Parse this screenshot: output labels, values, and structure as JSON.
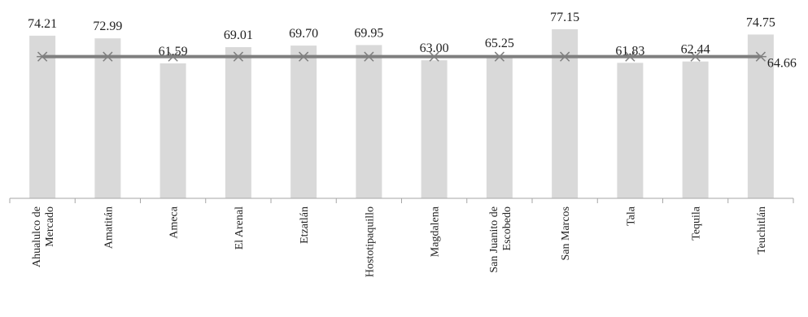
{
  "chart_data": {
    "type": "bar",
    "categories": [
      [
        "Ahualulco de",
        "Mercado"
      ],
      [
        "Amatitán"
      ],
      [
        "Ameca"
      ],
      [
        "El Arenal"
      ],
      [
        "Etzatlán"
      ],
      [
        "Hostotipaquillo"
      ],
      [
        "Magdalena"
      ],
      [
        "San Juanito de",
        "Escobedo"
      ],
      [
        "San Marcos"
      ],
      [
        "Tala"
      ],
      [
        "Tequila"
      ],
      [
        "Teuchitlán"
      ]
    ],
    "values": [
      74.21,
      72.99,
      61.59,
      69.01,
      69.7,
      69.95,
      63.0,
      65.25,
      77.15,
      61.83,
      62.44,
      74.75
    ],
    "value_labels": [
      "74.21",
      "72.99",
      "61.59",
      "69.01",
      "69.70",
      "69.95",
      "63.00",
      "65.25",
      "77.15",
      "61.83",
      "62.44",
      "74.75"
    ],
    "average": {
      "value": 64.66,
      "label": "64.66",
      "marker": "asterisk",
      "color": "#7f7f7f"
    },
    "bar_color": "#d9d9d9",
    "axis_color": "#a6a6a6",
    "ylim": [
      0,
      77.15
    ],
    "grid": false,
    "title": "",
    "xlabel": "",
    "ylabel": ""
  }
}
